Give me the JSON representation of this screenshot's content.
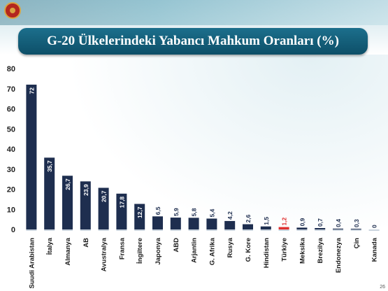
{
  "header": {
    "title": "G-20 Ülkelerindeki Yabancı Mahkum Oranları (%)"
  },
  "footer": {
    "page_number": "26"
  },
  "colors": {
    "bar": "#1e2e4f",
    "highlight_bar": "#e03030",
    "title_bar": "#0d4f68",
    "value_label": "#ffffff"
  },
  "chart_data": {
    "type": "bar",
    "title": "G-20 Ülkelerindeki Yabancı Mahkum Oranları (%)",
    "xlabel": "",
    "ylabel": "",
    "ylim": [
      0,
      80
    ],
    "yticks": [
      0,
      10,
      20,
      30,
      40,
      50,
      60,
      70,
      80
    ],
    "grid": false,
    "legend": "none",
    "categories": [
      "Suudi Arabistan",
      "İtalya",
      "Almanya",
      "AB",
      "Avustralya",
      "Fransa",
      "İngiltere",
      "Japonya",
      "ABD",
      "Arjantin",
      "G. Afrika",
      "Rusya",
      "G. Kore",
      "Hindistan",
      "Türkiye",
      "Meksika",
      "Brezilya",
      "Endonezya",
      "Çin",
      "Kanada"
    ],
    "values": [
      72,
      35.7,
      26.7,
      23.9,
      20.7,
      17.8,
      12.7,
      6.5,
      5.9,
      5.8,
      5.4,
      4.2,
      2.6,
      1.5,
      1.2,
      0.9,
      0.7,
      0.4,
      0.3,
      0
    ],
    "value_labels": [
      "72",
      "35,7",
      "26,7",
      "23,9",
      "20,7",
      "17,8",
      "12,7",
      "6,5",
      "5,9",
      "5,8",
      "5,4",
      "4,2",
      "2,6",
      "1,5",
      "1,2",
      "0,9",
      "0,7",
      "0,4",
      "0,3",
      "0"
    ],
    "highlight_category": "Türkiye"
  }
}
